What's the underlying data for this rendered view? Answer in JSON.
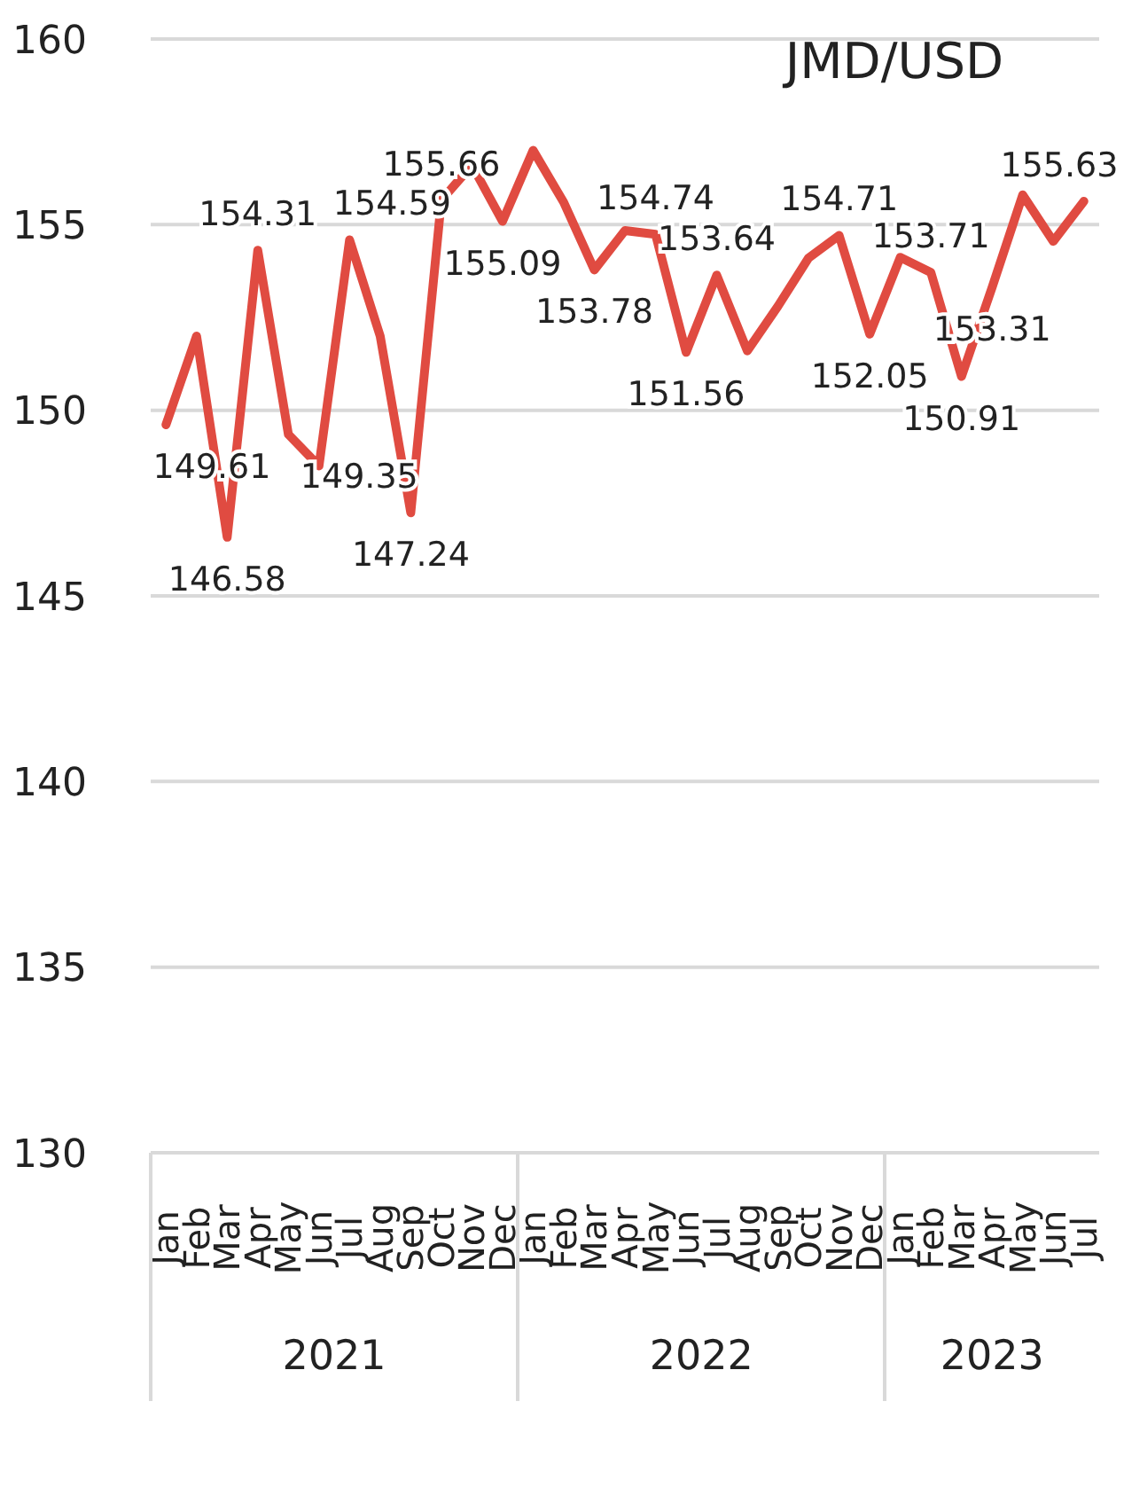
{
  "chart_data": {
    "type": "line",
    "title": "JMD/USD",
    "categories": [
      "Jan",
      "Feb",
      "Mar",
      "Apr",
      "May",
      "Jun",
      "Jul",
      "Aug",
      "Sep",
      "Oct",
      "Nov",
      "Dec",
      "Jan",
      "Feb",
      "Mar",
      "Apr",
      "May",
      "Jun",
      "Jul",
      "Aug",
      "Sep",
      "Oct",
      "Nov",
      "Dec",
      "Jan",
      "Feb",
      "Mar",
      "Apr",
      "May",
      "Jun",
      "Jul"
    ],
    "series": [
      {
        "color": "#e04b41",
        "values": [
          149.61,
          152.0,
          146.58,
          154.31,
          149.35,
          148.5,
          154.59,
          152.0,
          147.24,
          155.66,
          156.6,
          155.09,
          157.0,
          155.6,
          153.78,
          154.84,
          154.74,
          151.56,
          153.64,
          151.6,
          152.8,
          154.1,
          154.71,
          152.05,
          154.12,
          153.71,
          150.91,
          153.31,
          155.8,
          154.55,
          155.63
        ],
        "value_labels": [
          "149.61",
          null,
          "146.58",
          "154.31",
          "149.35",
          null,
          "154.59",
          null,
          "147.24",
          "155.66",
          null,
          "155.09",
          null,
          null,
          "153.78",
          null,
          "154.74",
          "151.56",
          "153.64",
          null,
          null,
          null,
          "154.71",
          "152.05",
          null,
          "153.71",
          "150.91",
          "153.31",
          null,
          null,
          "155.63"
        ]
      }
    ],
    "annotations": [
      "2021",
      "2022",
      "2023"
    ],
    "ylim": [
      130,
      160
    ],
    "yticks": [
      130,
      135,
      140,
      145,
      150,
      155,
      160
    ],
    "grid": "y",
    "marker": "none",
    "line_style": "solid",
    "legend": false
  }
}
